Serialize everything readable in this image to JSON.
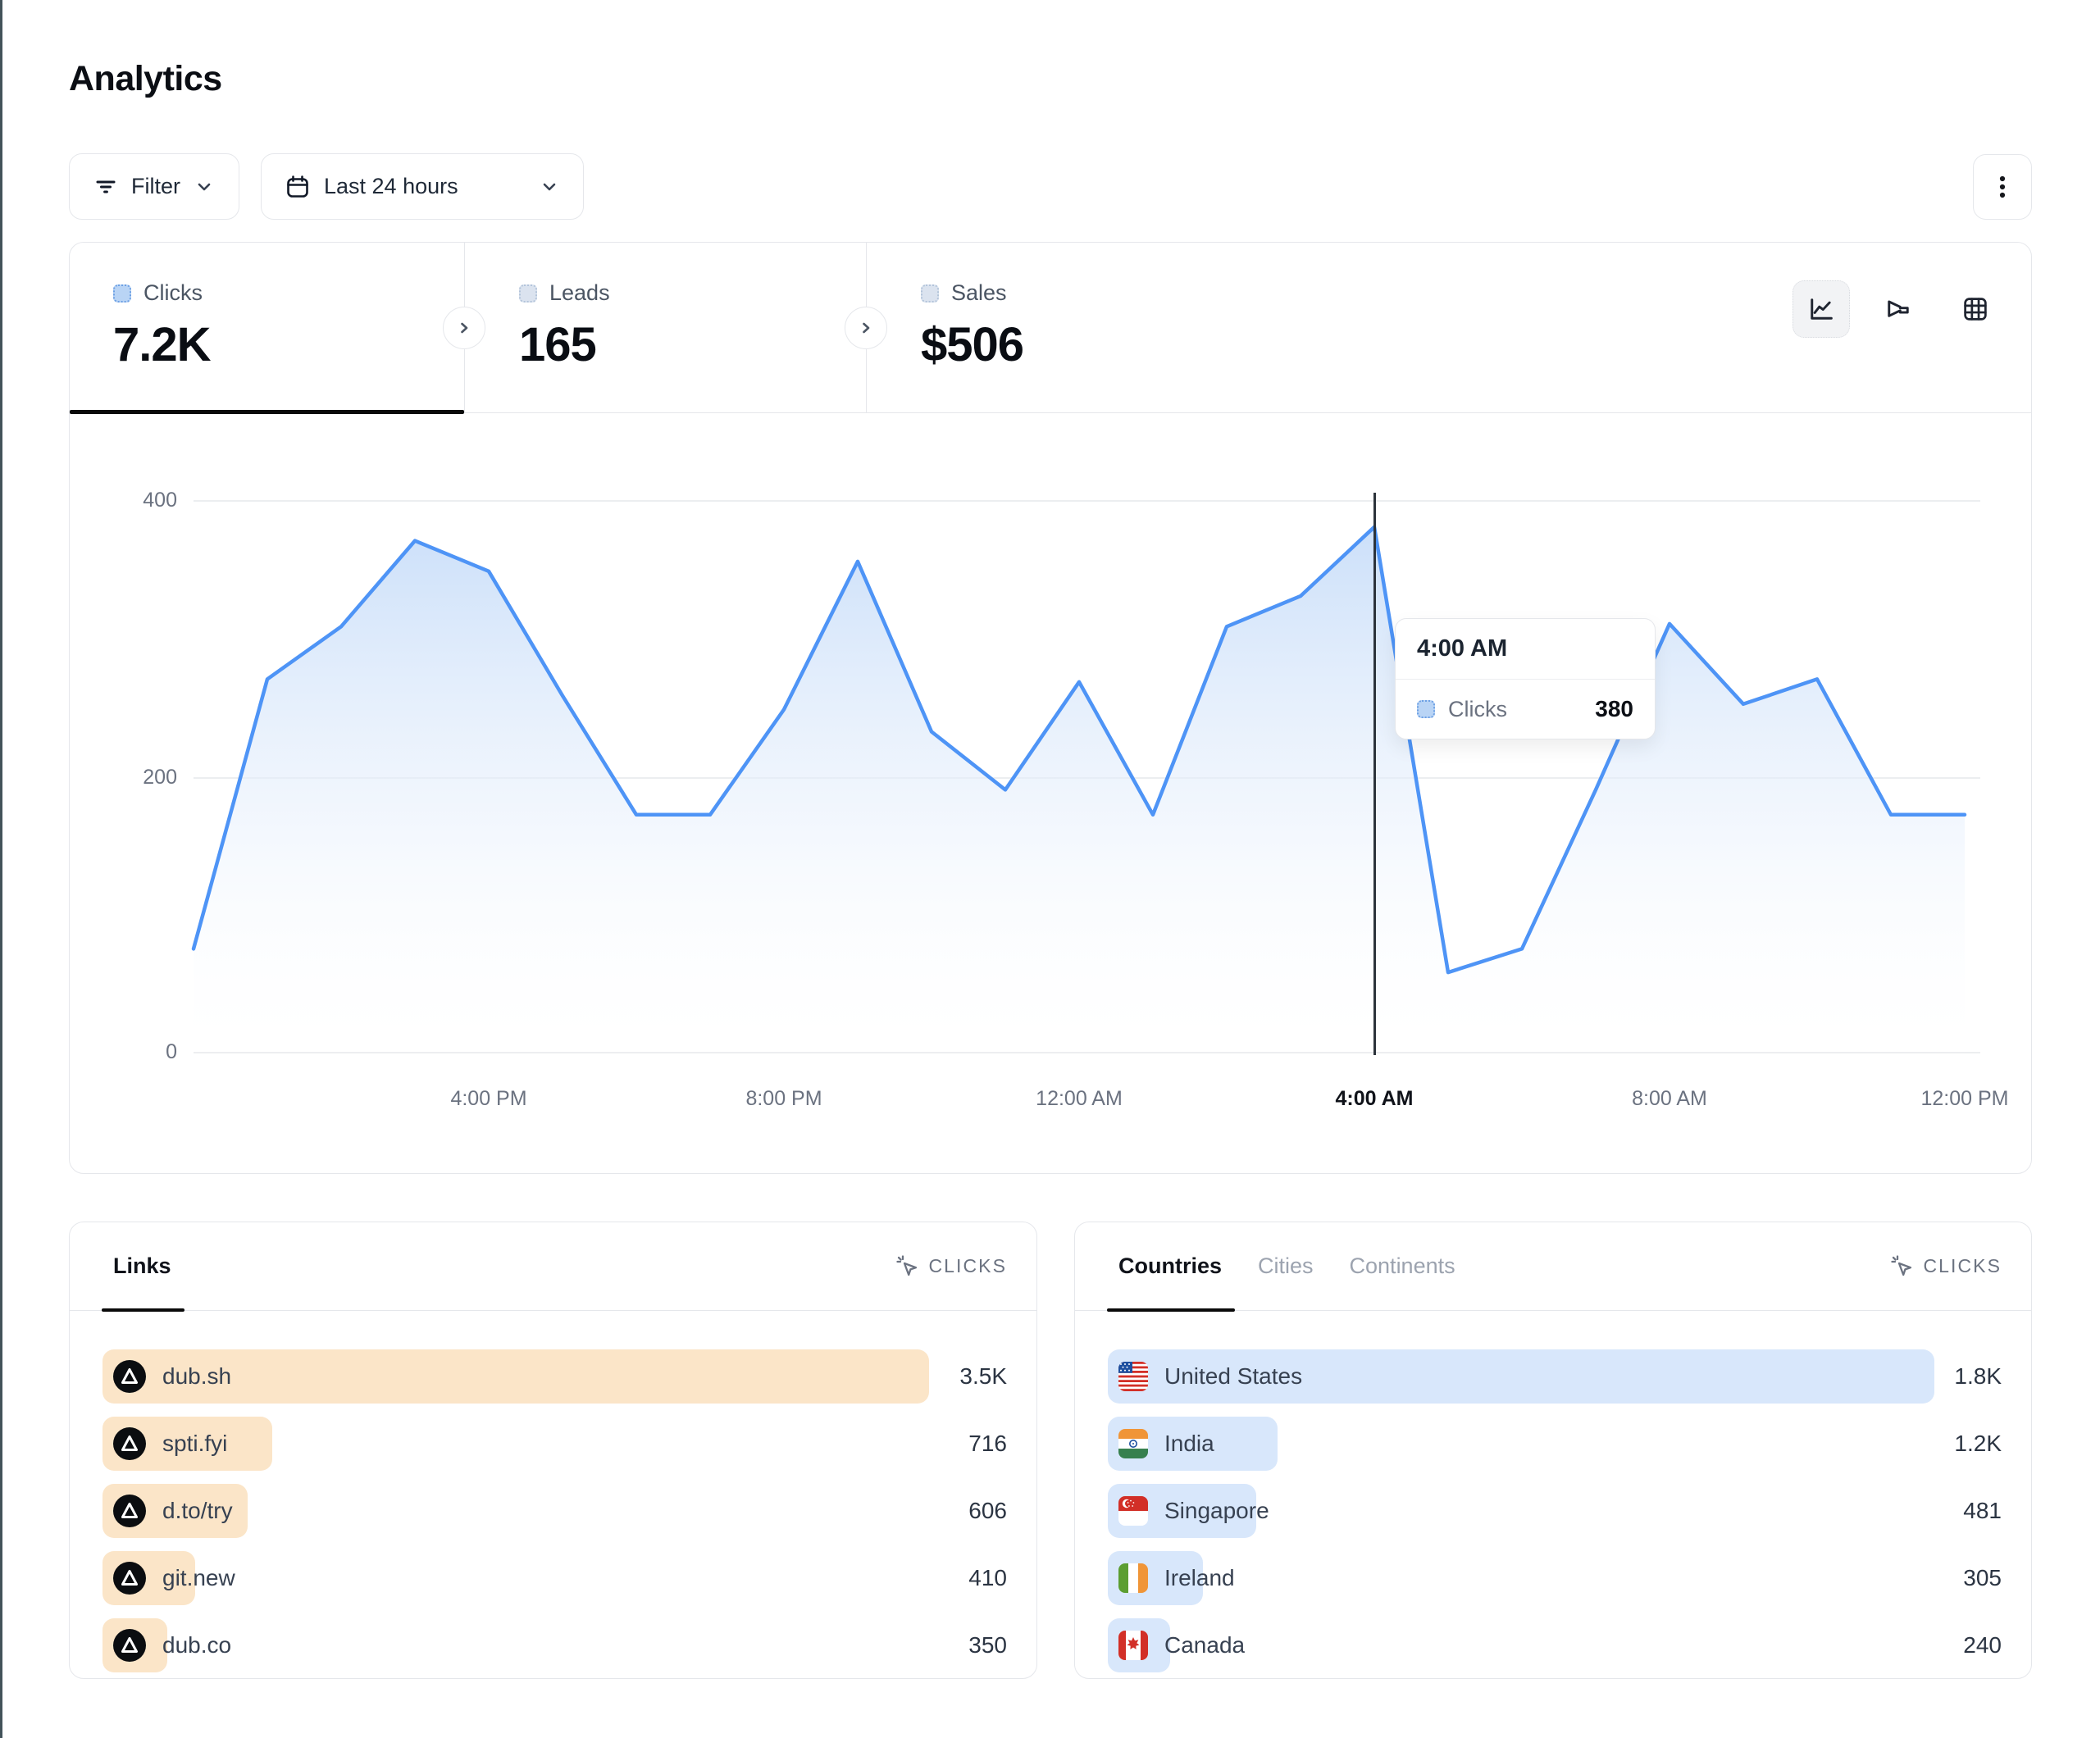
{
  "page": {
    "title": "Analytics"
  },
  "toolbar": {
    "filter_label": "Filter",
    "date_range_label": "Last 24 hours"
  },
  "metrics": {
    "tabs": [
      {
        "label": "Clicks",
        "value": "7.2K",
        "selected": true
      },
      {
        "label": "Leads",
        "value": "165",
        "selected": false
      },
      {
        "label": "Sales",
        "value": "$506",
        "selected": false
      }
    ],
    "chart_type_icons": [
      "line-chart-icon",
      "funnel-icon",
      "grid-icon"
    ]
  },
  "chart_data": {
    "type": "area",
    "x": [
      "12:00 PM",
      "1:00 PM",
      "2:00 PM",
      "3:00 PM",
      "4:00 PM",
      "5:00 PM",
      "6:00 PM",
      "7:00 PM",
      "8:00 PM",
      "9:00 PM",
      "10:00 PM",
      "11:00 PM",
      "12:00 AM",
      "1:00 AM",
      "2:00 AM",
      "3:00 AM",
      "4:00 AM",
      "5:00 AM",
      "6:00 AM",
      "7:00 AM",
      "8:00 AM",
      "9:00 AM",
      "10:00 AM",
      "11:00 AM",
      "12:00 PM"
    ],
    "series": [
      {
        "name": "Clicks",
        "values": [
          75,
          270,
          308,
          370,
          348,
          258,
          172,
          172,
          248,
          355,
          232,
          190,
          268,
          172,
          308,
          330,
          380,
          58,
          75,
          190,
          310,
          252,
          270,
          172,
          172
        ]
      }
    ],
    "yticks": [
      "400",
      "200",
      "0"
    ],
    "ylim": [
      0,
      400
    ],
    "grid": "horizontal",
    "legend": "none",
    "line_color": "#4e94f6",
    "xticks": [
      {
        "label": "4:00 PM",
        "i": 4
      },
      {
        "label": "8:00 PM",
        "i": 8
      },
      {
        "label": "12:00 AM",
        "i": 12
      },
      {
        "label": "4:00 AM",
        "i": 16
      },
      {
        "label": "8:00 AM",
        "i": 20
      },
      {
        "label": "12:00 PM",
        "i": 24
      }
    ],
    "highlighted_tick": "4:00 AM",
    "tooltip": {
      "time": "4:00 AM",
      "series": "Clicks",
      "value": "380",
      "point_index": 16
    }
  },
  "links_card": {
    "tab_label": "Links",
    "metric_label": "CLICKS",
    "bar_color": "#fbe5c8",
    "rows": [
      {
        "label": "dub.sh",
        "value": "3.5K",
        "bar_pct": 100,
        "icon": "dub-logo"
      },
      {
        "label": "spti.fyi",
        "value": "716",
        "bar_pct": 20.5,
        "icon": "dub-logo"
      },
      {
        "label": "d.to/try",
        "value": "606",
        "bar_pct": 17.6,
        "icon": "dub-logo"
      },
      {
        "label": "git.new",
        "value": "410",
        "bar_pct": 11.2,
        "icon": "dub-logo"
      },
      {
        "label": "dub.co",
        "value": "350",
        "bar_pct": 7.8,
        "icon": "dub-logo"
      }
    ]
  },
  "countries_card": {
    "tabs": [
      {
        "label": "Countries",
        "selected": true
      },
      {
        "label": "Cities",
        "selected": false
      },
      {
        "label": "Continents",
        "selected": false
      }
    ],
    "metric_label": "CLICKS",
    "bar_color": "#d8e7fb",
    "rows": [
      {
        "label": "United States",
        "value": "1.8K",
        "bar_pct": 100,
        "icon": "us-flag"
      },
      {
        "label": "India",
        "value": "1.2K",
        "bar_pct": 20.5,
        "icon": "india-flag"
      },
      {
        "label": "Singapore",
        "value": "481",
        "bar_pct": 18,
        "icon": "singapore-flag"
      },
      {
        "label": "Ireland",
        "value": "305",
        "bar_pct": 11.5,
        "icon": "ireland-flag"
      },
      {
        "label": "Canada",
        "value": "240",
        "bar_pct": 7.5,
        "icon": "canada-flag"
      }
    ]
  },
  "colors": {
    "accent_blue": "#4e94f6",
    "links_bar": "#fbe5c8",
    "countries_bar": "#d8e7fb",
    "border": "#e5e7eb"
  }
}
